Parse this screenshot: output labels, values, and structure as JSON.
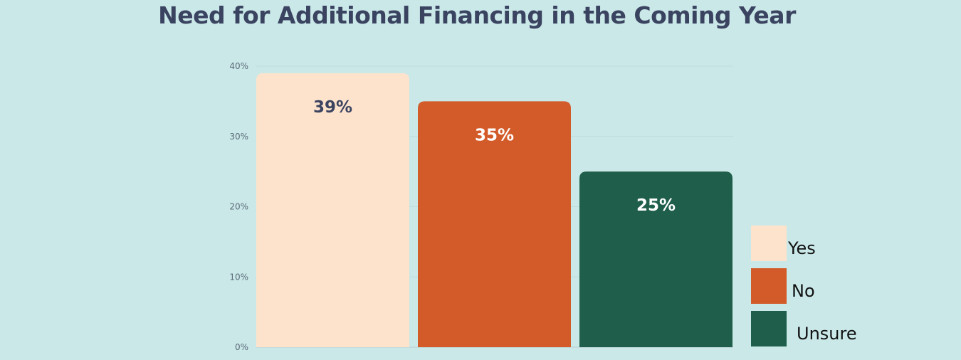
{
  "chart_data": {
    "type": "bar",
    "title": "Need for Additional Financing in the Coming Year",
    "categories": [
      "Yes",
      "No",
      "Unsure"
    ],
    "values": [
      39,
      35,
      25
    ],
    "value_labels": [
      "39%",
      "35%",
      "25%"
    ],
    "colors": [
      "#fde3cc",
      "#d35b29",
      "#1e5e4b"
    ],
    "label_colors": [
      "#3a4360",
      "#ffffff",
      "#ffffff"
    ],
    "y_ticks": [
      "0%",
      "10%",
      "20%",
      "30%",
      "40%"
    ],
    "y_tick_values": [
      0,
      10,
      20,
      30,
      40
    ],
    "ylim": [
      0,
      40
    ],
    "grid": true,
    "legend": {
      "position": "right",
      "entries": [
        "Yes",
        "No",
        "Unsure"
      ]
    }
  }
}
